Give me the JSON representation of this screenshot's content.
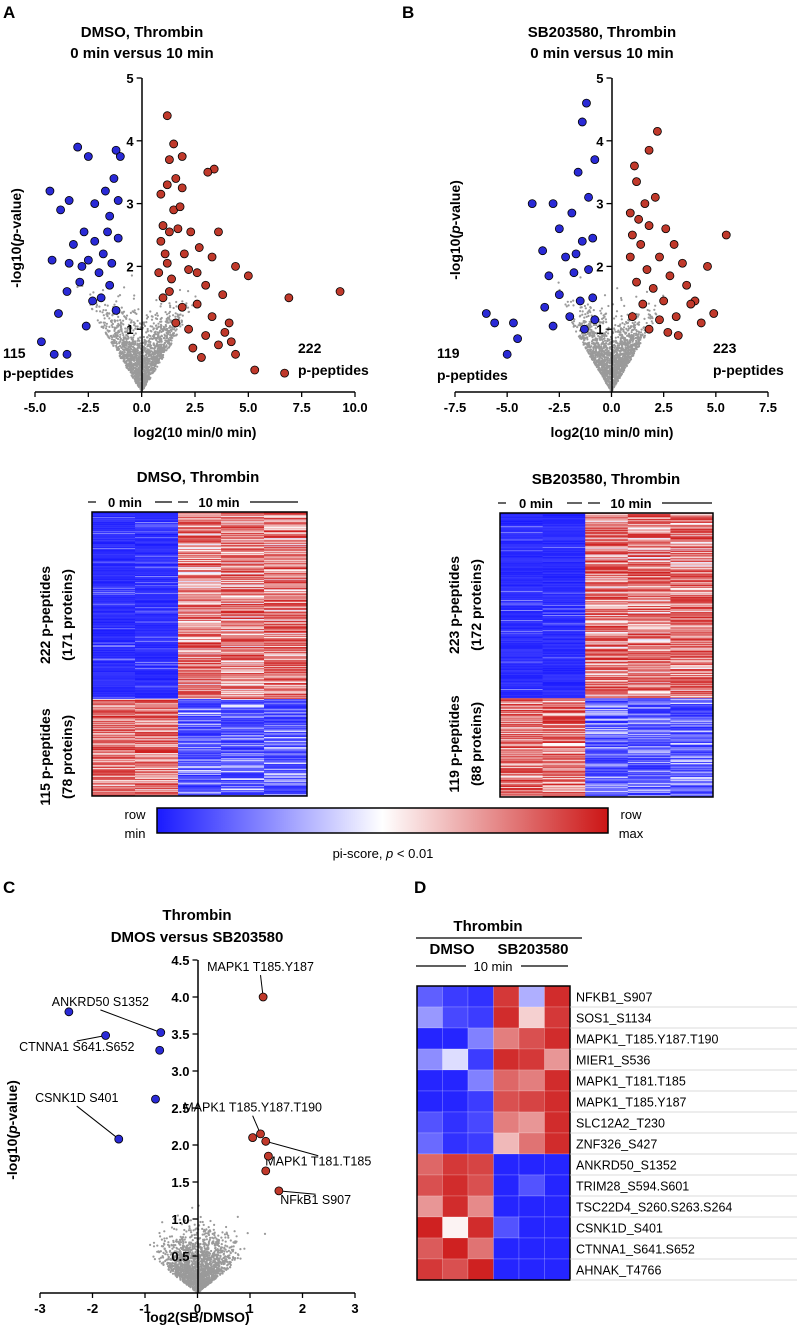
{
  "colors": {
    "red": "#c0392b",
    "blue": "#2a2ad6",
    "grey": "#9a9a9a",
    "hm_min": "#1a1aff",
    "hm_mid": "#ffffff",
    "hm_max": "#cc1515"
  },
  "panels": {
    "A": "A",
    "B": "B",
    "C": "C",
    "D": "D"
  },
  "icons": {
    "colorbar": "gradient-bar-icon"
  },
  "chart_data": [
    {
      "id": "volcano_A",
      "type": "scatter",
      "title_line1": "DMSO, Thrombin",
      "title_line2": "0 min versus 10 min",
      "xlabel": "log2(10 min/0 min)",
      "ylabel_pre": "-log10(",
      "ylabel_italic": "p",
      "ylabel_post": "-value)",
      "xlim": [
        -5.0,
        10.0
      ],
      "ylim": [
        0,
        5
      ],
      "xticks": [
        "-5.0",
        "-2.5",
        "0.0",
        "2.5",
        "5.0",
        "7.5",
        "10.0"
      ],
      "xtick_values": [
        -5,
        -2.5,
        0,
        2.5,
        5,
        7.5,
        10
      ],
      "yticks": [
        "1",
        "2",
        "3",
        "4",
        "5"
      ],
      "ytick_values": [
        1,
        2,
        3,
        4,
        5
      ],
      "left_count": "115",
      "right_count": "222",
      "count_unit": "p-peptides",
      "highlight_up": [
        [
          1.2,
          4.4
        ],
        [
          1.5,
          3.95
        ],
        [
          1.3,
          3.7
        ],
        [
          1.9,
          3.75
        ],
        [
          3.4,
          3.55
        ],
        [
          3.1,
          3.5
        ],
        [
          1.6,
          3.4
        ],
        [
          1.2,
          3.3
        ],
        [
          1.9,
          3.25
        ],
        [
          0.9,
          3.15
        ],
        [
          1.5,
          2.9
        ],
        [
          1.8,
          2.95
        ],
        [
          1.3,
          2.55
        ],
        [
          1.0,
          2.65
        ],
        [
          1.7,
          2.6
        ],
        [
          2.3,
          2.55
        ],
        [
          3.6,
          2.55
        ],
        [
          0.9,
          2.4
        ],
        [
          1.1,
          2.2
        ],
        [
          2.0,
          2.2
        ],
        [
          2.7,
          2.3
        ],
        [
          3.3,
          2.15
        ],
        [
          4.4,
          2.0
        ],
        [
          0.8,
          1.9
        ],
        [
          1.4,
          1.8
        ],
        [
          2.2,
          1.95
        ],
        [
          3.0,
          1.7
        ],
        [
          5.0,
          1.85
        ],
        [
          3.8,
          1.55
        ],
        [
          9.3,
          1.6
        ],
        [
          6.9,
          1.5
        ],
        [
          1.0,
          1.5
        ],
        [
          1.9,
          1.35
        ],
        [
          2.6,
          1.4
        ],
        [
          3.3,
          1.2
        ],
        [
          4.1,
          1.1
        ],
        [
          2.2,
          1.0
        ],
        [
          3.0,
          0.9
        ],
        [
          3.6,
          0.75
        ],
        [
          4.4,
          0.6
        ],
        [
          2.8,
          0.55
        ],
        [
          5.3,
          0.35
        ],
        [
          6.7,
          0.3
        ],
        [
          4.2,
          0.8
        ],
        [
          1.6,
          1.1
        ],
        [
          2.4,
          0.7
        ],
        [
          1.3,
          1.6
        ],
        [
          3.9,
          0.95
        ],
        [
          1.2,
          2.05
        ],
        [
          2.6,
          1.9
        ]
      ],
      "highlight_down": [
        [
          -1.2,
          3.85
        ],
        [
          -1.0,
          3.75
        ],
        [
          -3.0,
          3.9
        ],
        [
          -2.5,
          3.75
        ],
        [
          -4.3,
          3.2
        ],
        [
          -3.4,
          3.05
        ],
        [
          -1.3,
          3.4
        ],
        [
          -2.2,
          3.0
        ],
        [
          -1.7,
          3.2
        ],
        [
          -3.8,
          2.9
        ],
        [
          -2.7,
          2.55
        ],
        [
          -1.5,
          2.8
        ],
        [
          -3.2,
          2.35
        ],
        [
          -2.2,
          2.4
        ],
        [
          -1.6,
          2.55
        ],
        [
          -4.2,
          2.1
        ],
        [
          -3.4,
          2.05
        ],
        [
          -2.5,
          2.1
        ],
        [
          -1.4,
          2.05
        ],
        [
          -2.9,
          1.75
        ],
        [
          -3.5,
          1.6
        ],
        [
          -1.9,
          1.5
        ],
        [
          -1.5,
          1.7
        ],
        [
          -2.3,
          1.45
        ],
        [
          -1.2,
          1.3
        ],
        [
          -3.9,
          1.25
        ],
        [
          -2.6,
          1.05
        ],
        [
          -4.7,
          0.8
        ],
        [
          -3.5,
          0.6
        ],
        [
          -4.1,
          0.6
        ],
        [
          -2.0,
          1.9
        ],
        [
          -1.8,
          2.2
        ],
        [
          -1.1,
          2.45
        ],
        [
          -1.1,
          3.05
        ],
        [
          -2.8,
          2.0
        ]
      ]
    },
    {
      "id": "volcano_B",
      "type": "scatter",
      "title_line1": "SB203580, Thrombin",
      "title_line2": "0 min versus 10 min",
      "xlabel": "log2(10 min/0 min)",
      "ylabel_pre": "-log10(",
      "ylabel_italic": "p",
      "ylabel_post": "-value)",
      "xlim": [
        -7.5,
        7.5
      ],
      "ylim": [
        0,
        5
      ],
      "xticks": [
        "-7.5",
        "-5.0",
        "-2.5",
        "0.0",
        "2.5",
        "5.0",
        "7.5"
      ],
      "xtick_values": [
        -7.5,
        -5,
        -2.5,
        0,
        2.5,
        5,
        7.5
      ],
      "yticks": [
        "1",
        "2",
        "3",
        "4",
        "5"
      ],
      "ytick_values": [
        1,
        2,
        3,
        4,
        5
      ],
      "left_count": "119",
      "right_count": "223",
      "count_unit": "p-peptides",
      "highlight_up": [
        [
          2.2,
          4.15
        ],
        [
          1.8,
          3.85
        ],
        [
          1.1,
          3.6
        ],
        [
          1.2,
          3.35
        ],
        [
          1.6,
          3.0
        ],
        [
          2.1,
          3.1
        ],
        [
          0.9,
          2.85
        ],
        [
          1.3,
          2.75
        ],
        [
          1.8,
          2.65
        ],
        [
          2.6,
          2.6
        ],
        [
          3.0,
          2.35
        ],
        [
          5.5,
          2.5
        ],
        [
          1.0,
          2.5
        ],
        [
          1.4,
          2.35
        ],
        [
          2.3,
          2.15
        ],
        [
          3.4,
          2.05
        ],
        [
          4.6,
          2.0
        ],
        [
          0.9,
          2.15
        ],
        [
          1.7,
          1.95
        ],
        [
          2.8,
          1.85
        ],
        [
          3.6,
          1.7
        ],
        [
          4.0,
          1.45
        ],
        [
          4.9,
          1.25
        ],
        [
          1.2,
          1.75
        ],
        [
          2.0,
          1.65
        ],
        [
          2.5,
          1.45
        ],
        [
          3.1,
          1.2
        ],
        [
          4.3,
          1.1
        ],
        [
          1.5,
          1.4
        ],
        [
          2.3,
          1.15
        ],
        [
          3.2,
          0.9
        ],
        [
          1.8,
          1.0
        ],
        [
          2.7,
          0.95
        ],
        [
          1.0,
          1.2
        ],
        [
          3.8,
          1.4
        ]
      ],
      "highlight_down": [
        [
          -1.2,
          4.6
        ],
        [
          -1.4,
          4.3
        ],
        [
          -0.8,
          3.7
        ],
        [
          -1.6,
          3.5
        ],
        [
          -3.8,
          3.0
        ],
        [
          -2.8,
          3.0
        ],
        [
          -1.1,
          3.1
        ],
        [
          -1.9,
          2.85
        ],
        [
          -2.5,
          2.6
        ],
        [
          -3.3,
          2.25
        ],
        [
          -1.4,
          2.4
        ],
        [
          -0.9,
          2.45
        ],
        [
          -2.2,
          2.15
        ],
        [
          -1.8,
          1.9
        ],
        [
          -3.0,
          1.85
        ],
        [
          -1.1,
          1.95
        ],
        [
          -2.5,
          1.55
        ],
        [
          -1.5,
          1.45
        ],
        [
          -3.2,
          1.35
        ],
        [
          -0.9,
          1.5
        ],
        [
          -4.7,
          1.1
        ],
        [
          -5.6,
          1.1
        ],
        [
          -4.5,
          0.85
        ],
        [
          -5.0,
          0.6
        ],
        [
          -2.0,
          1.2
        ],
        [
          -1.3,
          1.0
        ],
        [
          -0.8,
          1.15
        ],
        [
          -2.8,
          1.05
        ],
        [
          -6.0,
          1.25
        ],
        [
          -1.7,
          2.2
        ]
      ]
    },
    {
      "id": "heatmap_A",
      "type": "heatmap",
      "title": "DMSO, Thrombin",
      "group1": "0 min",
      "group2": "10 min",
      "top_label_line1": "222 p-peptides",
      "top_label_line2": "(171 proteins)",
      "bottom_label_line1": "115 p-peptides",
      "bottom_label_line2": "(78 proteins)",
      "columns": 5,
      "top_rows": 222,
      "bottom_rows": 115
    },
    {
      "id": "heatmap_B",
      "type": "heatmap",
      "title": "SB203580, Thrombin",
      "group1": "0 min",
      "group2": "10 min",
      "top_label_line1": "223 p-peptides",
      "top_label_line2": "(172 proteins)",
      "bottom_label_line1": "119 p-peptides",
      "bottom_label_line2": "(88 proteins)",
      "columns": 5,
      "top_rows": 223,
      "bottom_rows": 119
    },
    {
      "id": "colorbar",
      "type": "heatmap",
      "min_line1": "row",
      "min_line2": "min",
      "max_line1": "row",
      "max_line2": "max",
      "caption_pre": "pi-score, ",
      "caption_italic": "p",
      "caption_post": " < 0.01"
    },
    {
      "id": "volcano_C",
      "type": "scatter",
      "title_line1": "Thrombin",
      "title_line2": "DMOS versus SB203580",
      "xlabel": "log2(SB/DMSO)",
      "ylabel_pre": "-log10(",
      "ylabel_italic": "p",
      "ylabel_post": "-value)",
      "xlim": [
        -3,
        3
      ],
      "ylim": [
        0,
        4.5
      ],
      "xticks": [
        "-3",
        "-2",
        "-1",
        "0",
        "1",
        "2",
        "3"
      ],
      "xtick_values": [
        -3,
        -2,
        -1,
        0,
        1,
        2,
        3
      ],
      "yticks": [
        "0.5",
        "1.0",
        "1.5",
        "2.0",
        "2.5",
        "3.0",
        "3.5",
        "4.0",
        "4.5"
      ],
      "ytick_values": [
        0.5,
        1.0,
        1.5,
        2.0,
        2.5,
        3.0,
        3.5,
        4.0,
        4.5
      ],
      "highlight_up": [
        [
          1.25,
          4.0
        ],
        [
          1.05,
          2.1
        ],
        [
          1.2,
          2.15
        ],
        [
          1.3,
          2.05
        ],
        [
          1.35,
          1.85
        ],
        [
          1.3,
          1.65
        ],
        [
          1.55,
          1.38
        ]
      ],
      "highlight_down": [
        [
          -2.45,
          3.8
        ],
        [
          -1.75,
          3.48
        ],
        [
          -0.7,
          3.52
        ],
        [
          -0.72,
          3.28
        ],
        [
          -0.8,
          2.62
        ],
        [
          -1.5,
          2.08
        ]
      ],
      "annotations": [
        {
          "text": "MAPK1 T185.Y187",
          "x": 1.25,
          "y": 4.0
        },
        {
          "text": "ANKRD50 S1352",
          "x": -0.7,
          "y": 3.52
        },
        {
          "text": "CTNNA1 S641.S652",
          "x": -1.75,
          "y": 3.48
        },
        {
          "text": "MAPK1 T185.Y187.T190",
          "x": 1.2,
          "y": 2.15
        },
        {
          "text": "CSNK1D S401",
          "x": -1.5,
          "y": 2.08
        },
        {
          "text": "MAPK1 T181.T185",
          "x": 1.3,
          "y": 2.05
        },
        {
          "text": "NFkB1 S907",
          "x": 1.55,
          "y": 1.38
        }
      ]
    },
    {
      "id": "heatmap_D",
      "type": "heatmap",
      "title": "Thrombin",
      "group1": "DMSO",
      "group2": "SB203580",
      "time": "10 min",
      "rows": [
        "NFKB1_S907",
        "SOS1_S1134",
        "MAPK1_T185.Y187.T190",
        "MIER1_S536",
        "MAPK1_T181.T185",
        "MAPK1_T185.Y187",
        "SLC12A2_T230",
        "ZNF326_S427",
        "ANKRD50_S1352",
        "TRIM28_S594.S601",
        "TSC22D4_S260.S263.S264",
        "CSNK1D_S401",
        "CTNNA1_S641.S652",
        "AHNAK_T4766"
      ],
      "values": [
        [
          -0.7,
          -0.85,
          -0.9,
          0.85,
          -0.35,
          0.9
        ],
        [
          -0.45,
          -0.8,
          -0.85,
          0.9,
          0.2,
          0.85
        ],
        [
          -0.95,
          -0.95,
          -0.55,
          0.55,
          0.75,
          0.9
        ],
        [
          -0.5,
          -0.15,
          -0.85,
          0.9,
          0.85,
          0.45
        ],
        [
          -0.95,
          -0.95,
          -0.55,
          0.65,
          0.55,
          0.9
        ],
        [
          -0.95,
          -0.95,
          -0.85,
          0.75,
          0.8,
          0.9
        ],
        [
          -0.75,
          -0.9,
          -0.8,
          0.55,
          0.45,
          0.9
        ],
        [
          -0.65,
          -0.9,
          -0.85,
          0.3,
          0.6,
          0.9
        ],
        [
          0.65,
          0.85,
          0.8,
          -0.95,
          -0.95,
          -0.95
        ],
        [
          0.75,
          0.9,
          0.75,
          -0.95,
          -0.75,
          -0.95
        ],
        [
          0.45,
          0.9,
          0.5,
          -0.95,
          -0.95,
          -0.95
        ],
        [
          0.95,
          0.05,
          0.9,
          -0.75,
          -0.95,
          -0.95
        ],
        [
          0.7,
          0.95,
          0.6,
          -0.95,
          -0.95,
          -0.95
        ],
        [
          0.85,
          0.75,
          0.95,
          -0.95,
          -0.95,
          -0.95
        ]
      ]
    }
  ]
}
